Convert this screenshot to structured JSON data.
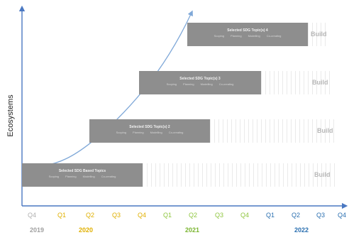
{
  "axis": {
    "ylabel": "Ecosystems"
  },
  "phases": [
    {
      "title": "Selected SDG Topic(s) 4",
      "subs": [
        "Scoping",
        "Planning",
        "Modelling",
        "Co-creating"
      ],
      "build": "Build"
    },
    {
      "title": "Selected SDG Topic(s) 3",
      "subs": [
        "Scoping",
        "Planning",
        "Modelling",
        "Co-creating"
      ],
      "build": "Build"
    },
    {
      "title": "Selected SDG Topic(s) 2",
      "subs": [
        "Scoping",
        "Planning",
        "Modelling",
        "Co-creating"
      ],
      "build": "Build"
    },
    {
      "title": "Selected SDG Based Topics",
      "subs": [
        "Scoping",
        "Planning",
        "Modelling",
        "Co-creating"
      ],
      "build": "Build"
    }
  ],
  "timeline": {
    "quarters": [
      {
        "label": "Q4",
        "color": "#b0b0b0"
      },
      {
        "label": "Q1",
        "color": "#e0b000"
      },
      {
        "label": "Q2",
        "color": "#e0b000"
      },
      {
        "label": "Q3",
        "color": "#e0b000"
      },
      {
        "label": "Q4",
        "color": "#e0b000"
      },
      {
        "label": "Q1",
        "color": "#8fc63f"
      },
      {
        "label": "Q2",
        "color": "#8fc63f"
      },
      {
        "label": "Q3",
        "color": "#8fc63f"
      },
      {
        "label": "Q4",
        "color": "#8fc63f"
      },
      {
        "label": "Q1",
        "color": "#2a6fb0"
      },
      {
        "label": "Q2",
        "color": "#2a6fb0"
      },
      {
        "label": "Q3",
        "color": "#2a6fb0"
      },
      {
        "label": "Q4",
        "color": "#2a6fb0"
      }
    ],
    "years": [
      {
        "label": "2019",
        "color": "#a0a0a0"
      },
      {
        "label": "2020",
        "color": "#e0b000"
      },
      {
        "label": "2021",
        "color": "#7ab530"
      },
      {
        "label": "2022",
        "color": "#2a6fb0"
      }
    ]
  },
  "colors": {
    "axis": "#4a78c2",
    "curve": "#7fa8d8",
    "phase_fill": "#8e8e8e"
  }
}
